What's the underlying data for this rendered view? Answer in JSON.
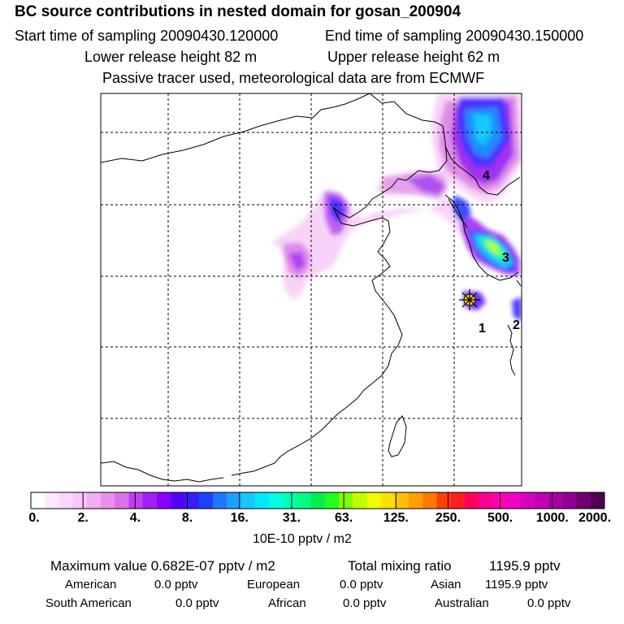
{
  "header": {
    "title": "BC  source contributions in nested domain for gosan_200904",
    "start_label": "Start time of sampling 20090430.120000",
    "end_label": "End time of sampling 20090430.150000",
    "lower_label": "Lower release height   82 m",
    "upper_label": "Upper release height   62 m",
    "info": "Passive tracer used, meteorological data are from ECMWF"
  },
  "map": {
    "markers": [
      {
        "label": "1"
      },
      {
        "label": "2"
      },
      {
        "label": "3"
      },
      {
        "label": "4"
      }
    ],
    "receptor": "star-marker-icon"
  },
  "colorbar": {
    "tick_labels": [
      "0.",
      "2.",
      "4.",
      "8.",
      "16.",
      "31.",
      "63.",
      "125.",
      "250.",
      "500.",
      "1000.",
      "2000."
    ],
    "unit": "10E-10 pptv / m2",
    "colors": [
      "#ffffff",
      "#fde8fd",
      "#fbd8fb",
      "#f8c6f8",
      "#f3adf3",
      "#ea8fea",
      "#df6fe6",
      "#c040f0",
      "#a020f0",
      "#8a00ff",
      "#5500ff",
      "#3a1cff",
      "#2040ff",
      "#1e78ff",
      "#1aa0ff",
      "#16c8ff",
      "#00e8ff",
      "#00ffe0",
      "#00ffb0",
      "#00ff80",
      "#00f050",
      "#20ff20",
      "#80ff00",
      "#c0ff00",
      "#f0ff00",
      "#ffe000",
      "#ffc000",
      "#ffa000",
      "#ff7800",
      "#ff4000",
      "#ff2020",
      "#ff0060",
      "#ff0090",
      "#ff00b0",
      "#f000c0",
      "#d800c0",
      "#c000b0",
      "#a800a0",
      "#900090",
      "#700070",
      "#500050"
    ]
  },
  "stats": {
    "max_label": "Maximum value  0.682E-07 pptv / m2",
    "total_label": "Total mixing ratio",
    "total_value": "1195.9 pptv",
    "american_label": "American",
    "american_value": "0.0 pptv",
    "european_label": "European",
    "european_value": "0.0 pptv",
    "asian_label": "Asian",
    "asian_value": "1195.9 pptv",
    "south_american_label": "South American",
    "south_american_value": "0.0 pptv",
    "african_label": "African",
    "african_value": "0.0 pptv",
    "australian_label": "Australian",
    "australian_value": "0.0 pptv"
  }
}
